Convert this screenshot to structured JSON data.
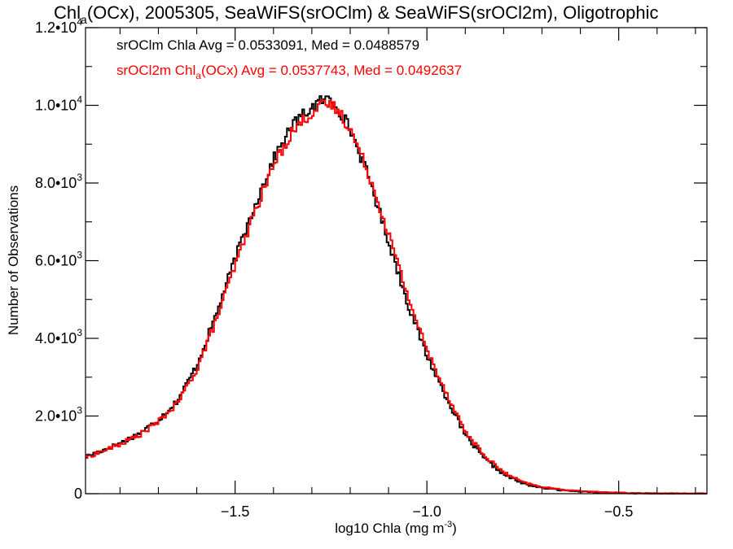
{
  "chart_data": {
    "type": "histogram-step",
    "title": {
      "prefix": "Chl",
      "subscript": "a",
      "suffix": "(OCx), 2005305, SeaWiFS(srOClm) & SeaWiFS(srOCl2m), Oligotrophic"
    },
    "xlabel": {
      "main": "log10 Chla (mg m",
      "superscript": "-3",
      "close": ")"
    },
    "ylabel": "Number of Observations",
    "xlim": [
      -1.89,
      -0.27
    ],
    "ylim": [
      0,
      12000
    ],
    "x_ticks": [
      {
        "value": -1.5,
        "label": "−1.5"
      },
      {
        "value": -1.0,
        "label": "−1.0"
      },
      {
        "value": -0.5,
        "label": "−0.5"
      }
    ],
    "x_minor_step": 0.1,
    "y_ticks": [
      {
        "value": 0,
        "mant": "0",
        "exp": ""
      },
      {
        "value": 2000,
        "mant": "2.0•10",
        "exp": "3"
      },
      {
        "value": 4000,
        "mant": "4.0•10",
        "exp": "3"
      },
      {
        "value": 6000,
        "mant": "6.0•10",
        "exp": "3"
      },
      {
        "value": 8000,
        "mant": "8.0•10",
        "exp": "3"
      },
      {
        "value": 10000,
        "mant": "1.0•10",
        "exp": "4"
      },
      {
        "value": 12000,
        "mant": "1.2•10",
        "exp": "4"
      }
    ],
    "y_minor_step": 1000,
    "grid": false,
    "bin_width": 0.005,
    "series": [
      {
        "name_parts": [
          "srOClm Chla Avg = 0.0533091, Med = 0.0488579"
        ],
        "color": "#000000",
        "x": [
          -1.89,
          -1.85,
          -1.8,
          -1.75,
          -1.7,
          -1.65,
          -1.6,
          -1.55,
          -1.5,
          -1.45,
          -1.4,
          -1.35,
          -1.3,
          -1.27,
          -1.25,
          -1.23,
          -1.2,
          -1.15,
          -1.1,
          -1.05,
          -1.0,
          -0.95,
          -0.9,
          -0.85,
          -0.8,
          -0.75,
          -0.7,
          -0.65,
          -0.6,
          -0.55,
          -0.5,
          -0.45,
          -0.4,
          -0.35,
          -0.3,
          -0.27
        ],
        "y": [
          950,
          1100,
          1300,
          1550,
          1900,
          2400,
          3300,
          4600,
          6050,
          7400,
          8600,
          9500,
          9950,
          10150,
          10150,
          9900,
          9400,
          8100,
          6500,
          4900,
          3550,
          2500,
          1500,
          900,
          500,
          260,
          150,
          95,
          60,
          35,
          20,
          10,
          5,
          3,
          2,
          1
        ]
      },
      {
        "name_parts": [
          "srOCl2m Chl",
          "a",
          "(OCx) Avg = 0.0537743, Med = 0.0492637"
        ],
        "color": "#ff0000",
        "x": [
          -1.89,
          -1.85,
          -1.8,
          -1.75,
          -1.7,
          -1.65,
          -1.6,
          -1.55,
          -1.5,
          -1.45,
          -1.4,
          -1.35,
          -1.3,
          -1.27,
          -1.25,
          -1.23,
          -1.2,
          -1.15,
          -1.1,
          -1.05,
          -1.0,
          -0.95,
          -0.9,
          -0.85,
          -0.8,
          -0.75,
          -0.7,
          -0.65,
          -0.6,
          -0.55,
          -0.5,
          -0.45,
          -0.4,
          -0.35,
          -0.3,
          -0.27
        ],
        "y": [
          930,
          1080,
          1270,
          1510,
          1850,
          2330,
          3200,
          4450,
          5870,
          7220,
          8450,
          9350,
          9820,
          10000,
          10020,
          9850,
          9400,
          8200,
          6700,
          5100,
          3700,
          2620,
          1600,
          980,
          550,
          290,
          170,
          105,
          68,
          40,
          24,
          12,
          6,
          3,
          2,
          1
        ]
      }
    ]
  }
}
